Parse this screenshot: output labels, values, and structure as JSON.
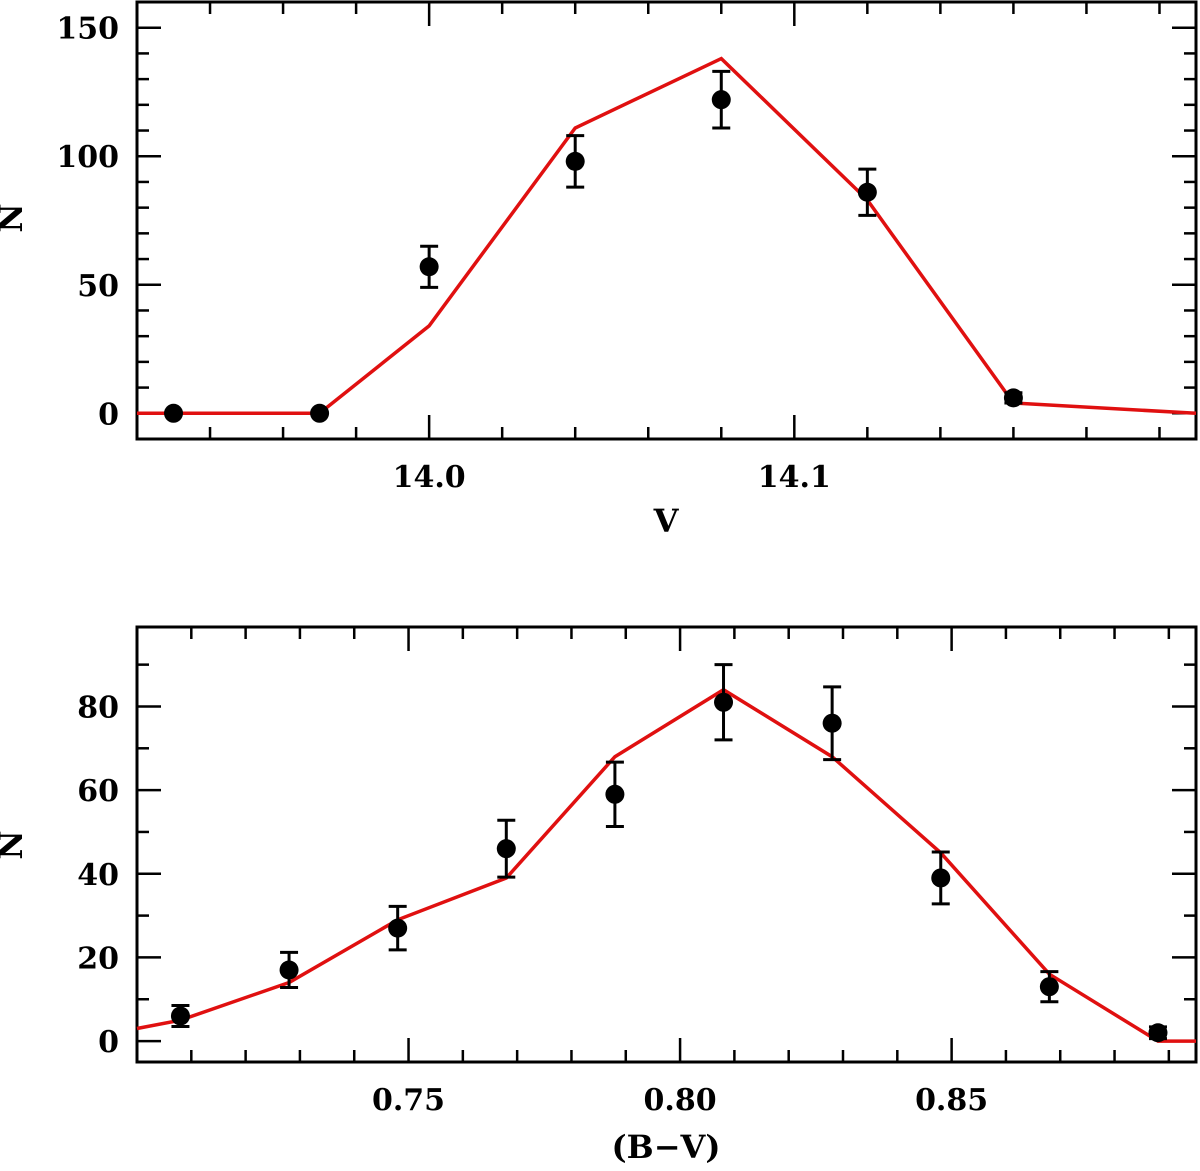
{
  "chart_data": [
    {
      "type": "scatter",
      "xlabel": "V",
      "ylabel": "N",
      "xlim": [
        13.92,
        14.21
      ],
      "ylim": [
        -10,
        160
      ],
      "grid": false,
      "xticks": {
        "major": [
          14.0,
          14.1
        ],
        "major_labels": [
          "14.0",
          "14.1"
        ],
        "minor_step": 0.02
      },
      "yticks": {
        "major": [
          0,
          50,
          100,
          150
        ],
        "major_labels": [
          "0",
          "50",
          "100",
          "150"
        ],
        "minor_step": 10
      },
      "observed": {
        "x": [
          13.93,
          13.97,
          14.0,
          14.04,
          14.08,
          14.12,
          14.16
        ],
        "y": [
          0,
          0,
          57,
          98,
          122,
          86,
          6
        ],
        "yerr": [
          0,
          0,
          8,
          10,
          11,
          9,
          2
        ],
        "color": "#000000"
      },
      "model": {
        "x": [
          13.92,
          13.97,
          14.0,
          14.04,
          14.08,
          14.12,
          14.16,
          14.21
        ],
        "y": [
          0,
          0,
          34,
          111,
          138,
          83,
          4,
          0
        ],
        "color": "#e01010"
      }
    },
    {
      "type": "scatter",
      "xlabel": "(B−V)",
      "ylabel": "N",
      "xlim": [
        0.7,
        0.895
      ],
      "ylim": [
        -5,
        99
      ],
      "grid": false,
      "xticks": {
        "major": [
          0.75,
          0.8,
          0.85
        ],
        "major_labels": [
          "0.75",
          "0.80",
          "0.85"
        ],
        "minor_step": 0.01
      },
      "yticks": {
        "major": [
          0,
          20,
          40,
          60,
          80
        ],
        "major_labels": [
          "0",
          "20",
          "40",
          "60",
          "80"
        ],
        "minor_step": 10
      },
      "observed": {
        "x": [
          0.708,
          0.728,
          0.748,
          0.768,
          0.788,
          0.808,
          0.828,
          0.848,
          0.868,
          0.888
        ],
        "y": [
          6,
          17,
          27,
          46,
          59,
          81,
          76,
          39,
          13,
          2
        ],
        "yerr": [
          2.5,
          4.2,
          5.2,
          6.8,
          7.7,
          9,
          8.7,
          6.2,
          3.6,
          1.4
        ],
        "color": "#000000"
      },
      "model": {
        "x": [
          0.7,
          0.708,
          0.728,
          0.748,
          0.768,
          0.788,
          0.808,
          0.828,
          0.848,
          0.868,
          0.888,
          0.895
        ],
        "y": [
          3,
          5,
          14,
          29,
          39,
          68,
          84,
          68,
          45,
          16,
          0,
          0
        ],
        "color": "#e01010"
      }
    }
  ]
}
